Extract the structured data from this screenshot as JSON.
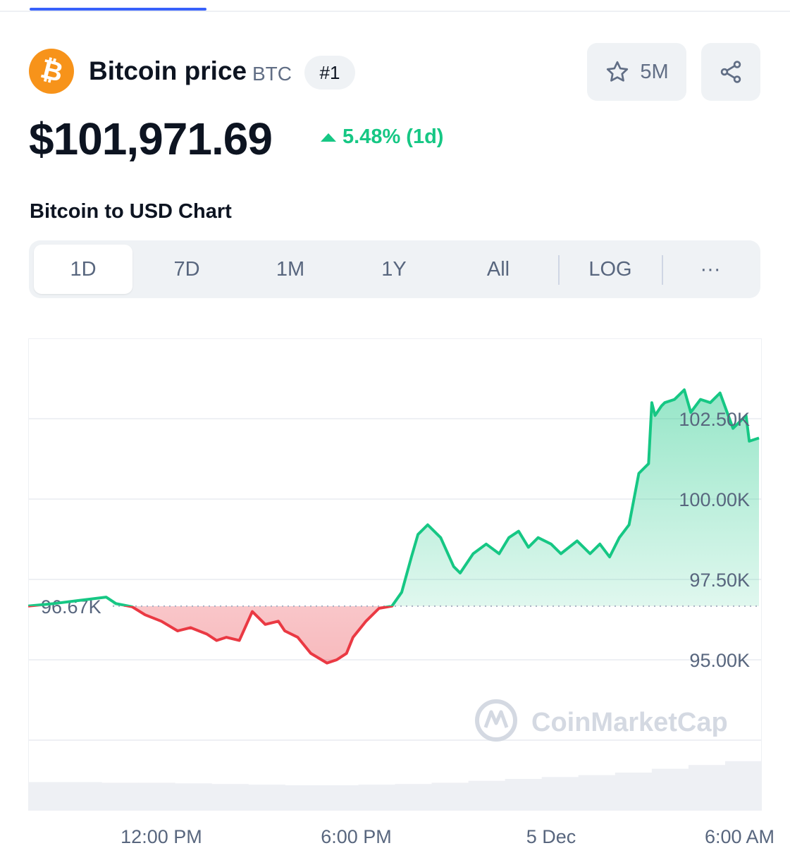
{
  "coin": {
    "name": "Bitcoin price",
    "symbol": "BTC",
    "rank": "#1",
    "logo_glyph": "₿",
    "logo_color": "#f7931a"
  },
  "watchlist": {
    "icon": "star-icon",
    "count": "5M"
  },
  "share": {
    "icon": "share-icon"
  },
  "price": {
    "value": "$101,971.69",
    "change": "5.48% (1d)",
    "direction": "up",
    "up_color": "#16c784"
  },
  "chart_section": {
    "title": "Bitcoin to USD Chart",
    "ranges": [
      "1D",
      "7D",
      "1M",
      "1Y",
      "All"
    ],
    "active_range": "1D",
    "scale_toggle": "LOG",
    "more_label": "···"
  },
  "watermark": "CoinMarketCap",
  "colors": {
    "up": "#16c784",
    "down": "#ea3943",
    "accent": "#3861fb"
  },
  "chart_data": {
    "type": "area",
    "title": "",
    "xlabel": "",
    "ylabel": "",
    "x_tick_labels": [
      "12:00 PM",
      "6:00 PM",
      "5 Dec",
      "6:00 AM"
    ],
    "y_tick_labels": [
      "102.50K",
      "100.00K",
      "97.50K",
      "95.00K"
    ],
    "y_ticks": [
      102500,
      100000,
      97500,
      95000
    ],
    "ylim": [
      92500,
      105000
    ],
    "x_range_hours": [
      7.9,
      30.4
    ],
    "baseline": 96670,
    "baseline_label": "96.67K",
    "grid": true,
    "series": [
      {
        "x": [
          7.9,
          8.7,
          9.5,
          10.3,
          10.6,
          11.1,
          11.5,
          12.0,
          12.5,
          12.9,
          13.4,
          13.7,
          14.0,
          14.4,
          14.8,
          15.2,
          15.6,
          15.8,
          16.2,
          16.6,
          17.1,
          17.4,
          17.7,
          17.9,
          18.3,
          18.7,
          19.1,
          19.4,
          19.7,
          19.9,
          20.2,
          20.6,
          21.0,
          21.2,
          21.6,
          22.0,
          22.4,
          22.7,
          23.0,
          23.3,
          23.6,
          24.0,
          24.3,
          24.8,
          25.2,
          25.5,
          25.8,
          26.1,
          26.4,
          26.7,
          27.0,
          27.1,
          27.2,
          27.4,
          27.5,
          27.8,
          28.1,
          28.3,
          28.6,
          28.9,
          29.2,
          29.6,
          30.0,
          30.1,
          30.4
        ],
        "y": [
          96670,
          96750,
          96850,
          96950,
          96750,
          96650,
          96400,
          96200,
          95900,
          96000,
          95800,
          95600,
          95700,
          95600,
          96500,
          96100,
          96200,
          95900,
          95700,
          95200,
          94900,
          95000,
          95200,
          95700,
          96200,
          96600,
          96670,
          97100,
          98200,
          98900,
          99200,
          98800,
          97900,
          97700,
          98300,
          98600,
          98300,
          98800,
          99000,
          98500,
          98800,
          98600,
          98300,
          98700,
          98300,
          98600,
          98200,
          98800,
          99200,
          100800,
          101100,
          103000,
          102600,
          102900,
          103000,
          103100,
          103400,
          102700,
          103100,
          103000,
          103300,
          102200,
          102600,
          101800,
          101900
        ]
      }
    ],
    "volume": {
      "note": "relative volume bars along bottom, increasing toward end",
      "values": [
        0.45,
        0.45,
        0.44,
        0.44,
        0.43,
        0.42,
        0.41,
        0.4,
        0.4,
        0.41,
        0.42,
        0.44,
        0.47,
        0.5,
        0.53,
        0.56,
        0.6,
        0.66,
        0.72,
        0.78
      ]
    }
  }
}
